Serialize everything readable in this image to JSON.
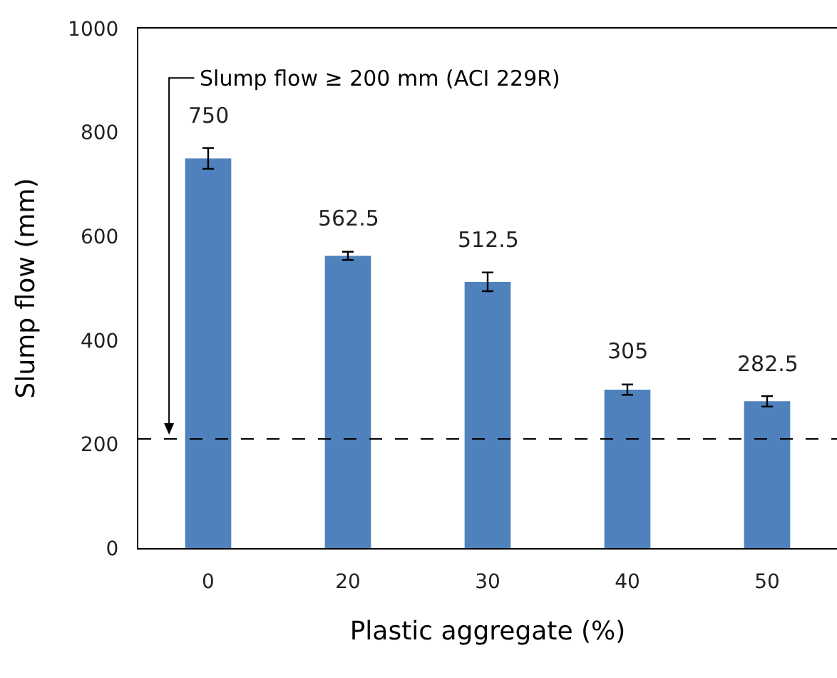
{
  "chart_data": {
    "type": "bar",
    "xlabel": "Plastic aggregate (%)",
    "ylabel": "Slump flow (mm)",
    "categories": [
      "0",
      "20",
      "30",
      "40",
      "50"
    ],
    "values": [
      750,
      562.5,
      512.5,
      305,
      282.5
    ],
    "errors": [
      20,
      8,
      18,
      10,
      10
    ],
    "color": "#4f81bd",
    "data_labels": true,
    "ylim": [
      0,
      1000
    ],
    "yticks": [
      0,
      200,
      400,
      600,
      800,
      1000
    ],
    "grid": false,
    "ref_lines": [
      {
        "axis": "y",
        "value": 210,
        "label": "Slump flow ≥ 200 mm (ACI 229R)",
        "color": "#000000",
        "line_style": "dashed"
      }
    ]
  }
}
